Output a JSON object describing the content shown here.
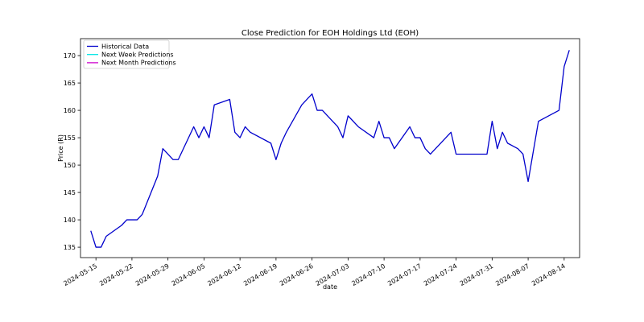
{
  "chart_data": {
    "type": "line",
    "title": "Close Prediction for EOH Holdings Ltd (EOH)",
    "xlabel": "date",
    "ylabel": "Price (R)",
    "ylim": [
      133.1,
      173.1
    ],
    "xlim": [
      "2024-05-12",
      "2024-08-17"
    ],
    "y_ticks": [
      135,
      140,
      145,
      150,
      155,
      160,
      165,
      170
    ],
    "x_ticks": [
      "2024-05-15",
      "2024-05-22",
      "2024-05-29",
      "2024-06-05",
      "2024-06-12",
      "2024-06-19",
      "2024-06-26",
      "2024-07-03",
      "2024-07-10",
      "2024-07-17",
      "2024-07-24",
      "2024-07-31",
      "2024-08-07",
      "2024-08-14"
    ],
    "grid": false,
    "legend": {
      "placement": "top-left",
      "entries": [
        {
          "name": "Historical Data",
          "color": "#0000cc"
        },
        {
          "name": "Next Week Predictions",
          "color": "#00e5e5"
        },
        {
          "name": "Next Month Predictions",
          "color": "#cc00cc"
        }
      ]
    },
    "series": [
      {
        "name": "Historical Data",
        "color": "#0000cc",
        "points": [
          [
            "2024-05-14",
            138
          ],
          [
            "2024-05-15",
            135
          ],
          [
            "2024-05-16",
            135
          ],
          [
            "2024-05-17",
            137
          ],
          [
            "2024-05-20",
            139
          ],
          [
            "2024-05-21",
            140
          ],
          [
            "2024-05-23",
            140
          ],
          [
            "2024-05-24",
            141
          ],
          [
            "2024-05-27",
            148
          ],
          [
            "2024-05-28",
            153
          ],
          [
            "2024-05-30",
            151
          ],
          [
            "2024-05-31",
            151
          ],
          [
            "2024-06-03",
            157
          ],
          [
            "2024-06-04",
            155
          ],
          [
            "2024-06-05",
            157
          ],
          [
            "2024-06-06",
            155
          ],
          [
            "2024-06-07",
            161
          ],
          [
            "2024-06-10",
            162
          ],
          [
            "2024-06-11",
            156
          ],
          [
            "2024-06-12",
            155
          ],
          [
            "2024-06-13",
            157
          ],
          [
            "2024-06-14",
            156
          ],
          [
            "2024-06-18",
            154
          ],
          [
            "2024-06-19",
            151
          ],
          [
            "2024-06-20",
            154
          ],
          [
            "2024-06-21",
            156
          ],
          [
            "2024-06-24",
            161
          ],
          [
            "2024-06-26",
            163
          ],
          [
            "2024-06-27",
            160
          ],
          [
            "2024-06-28",
            160
          ],
          [
            "2024-07-01",
            157
          ],
          [
            "2024-07-02",
            155
          ],
          [
            "2024-07-03",
            159
          ],
          [
            "2024-07-05",
            157
          ],
          [
            "2024-07-08",
            155
          ],
          [
            "2024-07-09",
            158
          ],
          [
            "2024-07-10",
            155
          ],
          [
            "2024-07-11",
            155
          ],
          [
            "2024-07-12",
            153
          ],
          [
            "2024-07-15",
            157
          ],
          [
            "2024-07-16",
            155
          ],
          [
            "2024-07-17",
            155
          ],
          [
            "2024-07-18",
            153
          ],
          [
            "2024-07-19",
            152
          ],
          [
            "2024-07-23",
            156
          ],
          [
            "2024-07-24",
            152
          ],
          [
            "2024-07-30",
            152
          ],
          [
            "2024-07-31",
            158
          ],
          [
            "2024-08-01",
            153
          ],
          [
            "2024-08-02",
            156
          ],
          [
            "2024-08-03",
            154
          ],
          [
            "2024-08-05",
            153
          ],
          [
            "2024-08-06",
            152
          ],
          [
            "2024-08-07",
            147
          ],
          [
            "2024-08-09",
            158
          ],
          [
            "2024-08-13",
            160
          ],
          [
            "2024-08-14",
            168
          ],
          [
            "2024-08-15",
            171
          ]
        ]
      }
    ]
  }
}
